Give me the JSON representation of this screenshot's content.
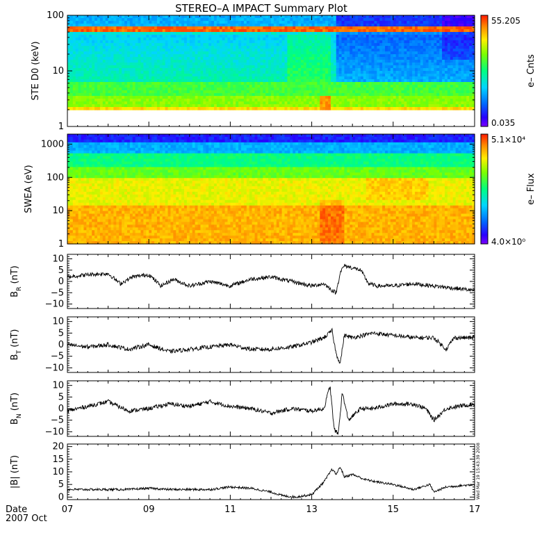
{
  "chart_data": {
    "title": "STEREO–A IMPACT Summary Plot",
    "date_label": "Date",
    "month_label": "2007 Oct",
    "x_ticks": [
      "07",
      "09",
      "11",
      "13",
      "15",
      "17"
    ],
    "x_range": [
      7,
      17
    ],
    "timestamp": "Wed Mar 19 15:43:39 2008",
    "panels": [
      {
        "type": "heatmap",
        "id": "ste",
        "ylabel": "STE D0 (keV)",
        "yscale": "log",
        "ylim": [
          1,
          100
        ],
        "ytick_labels": [
          "1",
          "10",
          "100"
        ],
        "ytick_values": [
          1,
          10,
          100
        ],
        "colorbar_label": "e– Cnts",
        "colorbar_max": "55.205",
        "colorbar_min": "0.035",
        "colormap": "rainbow (purple-blue-green-yellow-red)"
      },
      {
        "type": "heatmap",
        "id": "swea",
        "ylabel": "SWEA (eV)",
        "yscale": "log",
        "ylim": [
          1,
          2000
        ],
        "ytick_labels": [
          "1",
          "10",
          "100",
          "1000"
        ],
        "ytick_values": [
          1,
          10,
          100,
          1000
        ],
        "colorbar_label": "e– Flux",
        "colorbar_max": "5.1×10⁴",
        "colorbar_min": "4.0×10⁰",
        "colormap": "rainbow (purple-blue-green-yellow-red)"
      },
      {
        "type": "line",
        "id": "br",
        "ylabel": "B",
        "ylabel_sub": "R",
        "yunit": " (nT)",
        "ylim": [
          -12,
          12
        ],
        "ytick_labels": [
          "−10",
          "−5",
          "0",
          "5",
          "10"
        ],
        "ytick_values": [
          -10,
          -5,
          0,
          5,
          10
        ],
        "series": [
          {
            "x": [
              7.0,
              7.5,
              8.0,
              8.3,
              8.6,
              9.0,
              9.3,
              9.6,
              10.0,
              10.5,
              11.0,
              11.5,
              12.0,
              12.5,
              13.0,
              13.3,
              13.5,
              13.6,
              13.7,
              13.8,
              14.0,
              14.2,
              14.4,
              14.6,
              15.0,
              15.5,
              16.0,
              16.5,
              17.0
            ],
            "y": [
              2,
              3,
              3.5,
              -1,
              2,
              3,
              -2,
              1,
              -2,
              0,
              -2,
              1,
              2,
              0,
              -2,
              -1,
              -4,
              -5,
              4,
              7,
              6,
              5,
              -1,
              -2,
              -2,
              -1,
              -2,
              -3,
              -4
            ]
          }
        ]
      },
      {
        "type": "line",
        "id": "bt",
        "ylabel": "B",
        "ylabel_sub": "T",
        "yunit": " (nT)",
        "ylim": [
          -12,
          12
        ],
        "ytick_labels": [
          "−10",
          "−5",
          "0",
          "5",
          "10"
        ],
        "ytick_values": [
          -10,
          -5,
          0,
          5,
          10
        ],
        "series": [
          {
            "x": [
              7.0,
              7.5,
              8.0,
              8.5,
              9.0,
              9.5,
              10.0,
              10.5,
              11.0,
              11.5,
              12.0,
              12.5,
              13.0,
              13.3,
              13.5,
              13.6,
              13.7,
              13.8,
              14.0,
              14.5,
              15.0,
              15.5,
              16.0,
              16.3,
              16.5,
              17.0
            ],
            "y": [
              0,
              -1,
              0,
              -2,
              0,
              -3,
              -2,
              -1,
              0,
              -2,
              -2,
              -1,
              1,
              3,
              6,
              -4,
              -8,
              4,
              3,
              5,
              4,
              3,
              3,
              -2,
              3,
              3
            ]
          }
        ]
      },
      {
        "type": "line",
        "id": "bn",
        "ylabel": "B",
        "ylabel_sub": "N",
        "yunit": " (nT)",
        "ylim": [
          -12,
          12
        ],
        "ytick_labels": [
          "−10",
          "−5",
          "0",
          "5",
          "10"
        ],
        "ytick_values": [
          -10,
          -5,
          0,
          5,
          10
        ],
        "series": [
          {
            "x": [
              7.0,
              7.5,
              8.0,
              8.5,
              9.0,
              9.5,
              10.0,
              10.5,
              11.0,
              11.5,
              12.0,
              12.5,
              13.0,
              13.3,
              13.45,
              13.55,
              13.65,
              13.75,
              13.9,
              14.2,
              14.5,
              15.0,
              15.5,
              15.8,
              16.0,
              16.3,
              16.6,
              17.0
            ],
            "y": [
              -1,
              1,
              3,
              -1,
              0,
              2,
              1,
              3,
              1,
              0,
              -2,
              0,
              -1,
              0,
              10,
              -9,
              -11,
              7,
              -5,
              0,
              0,
              2,
              2,
              0,
              -5,
              0,
              1,
              2
            ]
          }
        ]
      },
      {
        "type": "line",
        "id": "bmag",
        "ylabel": "|B| (nT)",
        "ylabel_sub": "",
        "yunit": "",
        "ylim": [
          -1,
          21
        ],
        "ytick_labels": [
          "0",
          "5",
          "10",
          "15",
          "20"
        ],
        "ytick_values": [
          0,
          5,
          10,
          15,
          20
        ],
        "series": [
          {
            "x": [
              7.0,
              7.5,
              8.0,
              8.5,
              9.0,
              9.5,
              10.0,
              10.5,
              11.0,
              11.5,
              12.0,
              12.3,
              12.6,
              13.0,
              13.3,
              13.5,
              13.6,
              13.7,
              13.8,
              14.0,
              14.3,
              14.6,
              15.0,
              15.5,
              15.9,
              16.0,
              16.3,
              17.0
            ],
            "y": [
              3,
              3,
              3,
              3,
              3.5,
              3,
              3,
              3,
              4,
              3.5,
              2,
              0.5,
              0,
              1,
              6,
              11,
              9,
              12,
              8,
              9,
              7,
              6,
              5,
              3,
              5,
              2,
              4,
              5
            ]
          }
        ]
      }
    ]
  }
}
